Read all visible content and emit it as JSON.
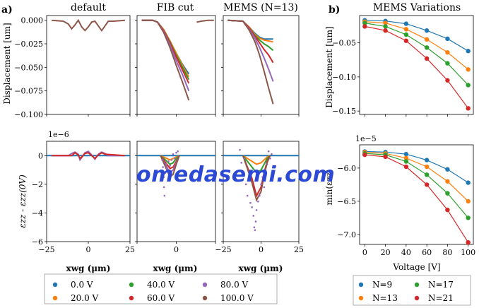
{
  "colors": {
    "v0": "#1f77b4",
    "v20": "#ff7f0e",
    "v40": "#2ca02c",
    "v60": "#d62728",
    "v80": "#9467bd",
    "v100": "#8c564b",
    "n9": "#1f77b4",
    "n13": "#ff7f0e",
    "n17": "#2ca02c",
    "n21": "#d62728"
  },
  "panel_labels": {
    "a": "a)",
    "b": "b)"
  },
  "watermark": "omedasemi.com",
  "legend_a": [
    {
      "label": "0.0 V",
      "color": "#1f77b4"
    },
    {
      "label": "40.0 V",
      "color": "#2ca02c"
    },
    {
      "label": "80.0 V",
      "color": "#9467bd"
    },
    {
      "label": "20.0 V",
      "color": "#ff7f0e"
    },
    {
      "label": "60.0 V",
      "color": "#d62728"
    },
    {
      "label": "100.0 V",
      "color": "#8c564b"
    }
  ],
  "legend_b": [
    {
      "label": "N=9",
      "color": "#1f77b4"
    },
    {
      "label": "N=17",
      "color": "#2ca02c"
    },
    {
      "label": "N=13",
      "color": "#ff7f0e"
    },
    {
      "label": "N=21",
      "color": "#d62728"
    }
  ],
  "chart_data": [
    {
      "type": "line",
      "title": "default",
      "ylabel": "Displacement [um]",
      "xlim": [
        -25,
        25
      ],
      "ylim": [
        -0.1,
        0.005
      ],
      "yticks": [
        "0.000",
        "−0.025",
        "−0.050",
        "−0.075",
        "−0.100"
      ],
      "ytick_values": [
        0,
        -0.025,
        -0.05,
        -0.075,
        -0.1
      ],
      "series": [
        {
          "color": "#8c564b",
          "x": [
            -22,
            -15,
            -12,
            -10,
            -8,
            -6,
            -4,
            -2,
            0,
            2,
            4,
            6,
            8,
            10,
            12,
            15,
            22
          ],
          "y": [
            0,
            -0.001,
            -0.004,
            -0.009,
            -0.005,
            0,
            -0.007,
            -0.011,
            -0.007,
            -0.002,
            -0.001,
            -0.006,
            -0.011,
            -0.006,
            -0.001,
            -0.001,
            0
          ]
        }
      ]
    },
    {
      "type": "line",
      "title": "FIB cut",
      "xlim": [
        -25,
        25
      ],
      "ylim": [
        -0.1,
        0.005
      ],
      "series": [
        {
          "color": "#1f77b4",
          "x": [
            -22,
            -15,
            -12,
            -8,
            -4,
            0,
            4,
            8
          ],
          "y": [
            0,
            0,
            -0.002,
            -0.01,
            -0.022,
            -0.035,
            -0.047,
            -0.057
          ]
        },
        {
          "color": "#ff7f0e",
          "x": [
            -22,
            -15,
            -12,
            -8,
            -4,
            0,
            4,
            8
          ],
          "y": [
            0,
            0,
            -0.002,
            -0.01,
            -0.022,
            -0.035,
            -0.048,
            -0.06
          ]
        },
        {
          "color": "#2ca02c",
          "x": [
            -22,
            -15,
            -12,
            -8,
            -4,
            0,
            4,
            8
          ],
          "y": [
            0,
            0,
            -0.002,
            -0.011,
            -0.023,
            -0.037,
            -0.05,
            -0.063
          ]
        },
        {
          "color": "#d62728",
          "x": [
            -22,
            -15,
            -12,
            -8,
            -4,
            0,
            4,
            8
          ],
          "y": [
            0,
            0,
            -0.002,
            -0.011,
            -0.024,
            -0.039,
            -0.053,
            -0.067
          ]
        },
        {
          "color": "#9467bd",
          "x": [
            -22,
            -15,
            -12,
            -8,
            -4,
            0,
            4,
            8
          ],
          "y": [
            0,
            0,
            -0.002,
            -0.012,
            -0.026,
            -0.043,
            -0.058,
            -0.075
          ]
        },
        {
          "color": "#8c564b",
          "x": [
            -22,
            -15,
            -12,
            -8,
            -4,
            0,
            4,
            8
          ],
          "y": [
            0,
            0,
            -0.002,
            -0.013,
            -0.029,
            -0.048,
            -0.066,
            -0.085
          ]
        },
        {
          "color": "#8c564b",
          "x": [
            13,
            16,
            20,
            24
          ],
          "y": [
            -0.002,
            -0.001,
            0,
            0
          ]
        }
      ]
    },
    {
      "type": "line",
      "title": "MEMS (N=13)",
      "xlim": [
        -25,
        25
      ],
      "ylim": [
        -0.1,
        0.005
      ],
      "series": [
        {
          "color": "#1f77b4",
          "x": [
            -22,
            -12,
            -8,
            -4,
            -1,
            2,
            5,
            8
          ],
          "y": [
            0,
            -0.001,
            -0.007,
            -0.014,
            -0.018,
            -0.02,
            -0.02,
            -0.02
          ]
        },
        {
          "color": "#ff7f0e",
          "x": [
            -22,
            -12,
            -8,
            -4,
            -1,
            2,
            5,
            8
          ],
          "y": [
            0,
            -0.001,
            -0.007,
            -0.015,
            -0.019,
            -0.021,
            -0.022,
            -0.023
          ]
        },
        {
          "color": "#2ca02c",
          "x": [
            -22,
            -12,
            -8,
            -4,
            -1,
            2,
            5,
            8
          ],
          "y": [
            0,
            -0.001,
            -0.008,
            -0.016,
            -0.021,
            -0.025,
            -0.028,
            -0.032
          ]
        },
        {
          "color": "#d62728",
          "x": [
            -22,
            -12,
            -8,
            -4,
            -1,
            2,
            5,
            8
          ],
          "y": [
            0,
            -0.001,
            -0.008,
            -0.017,
            -0.024,
            -0.031,
            -0.037,
            -0.045
          ]
        },
        {
          "color": "#9467bd",
          "x": [
            -22,
            -12,
            -8,
            -4,
            -1,
            2,
            5,
            8
          ],
          "y": [
            0,
            -0.001,
            -0.009,
            -0.019,
            -0.029,
            -0.04,
            -0.052,
            -0.065
          ]
        },
        {
          "color": "#8c564b",
          "x": [
            -22,
            -12,
            -8,
            -4,
            -1,
            2,
            5,
            8
          ],
          "y": [
            0,
            -0.001,
            -0.01,
            -0.023,
            -0.037,
            -0.054,
            -0.072,
            -0.089
          ]
        }
      ]
    },
    {
      "type": "line",
      "ylabel": "εzz - εzz(0V)",
      "offset_text": "1e−6",
      "xlabel": "xwg (μm)",
      "xlim": [
        -25,
        25
      ],
      "ylim": [
        -6,
        1
      ],
      "xticks": [
        "−25",
        "0",
        "25"
      ],
      "yticks": [
        "0",
        "−2",
        "−4",
        "−6"
      ],
      "ytick_values": [
        0,
        -2,
        -4,
        -6
      ],
      "series": [
        {
          "color": "#1f77b4",
          "x": [
            -25,
            25
          ],
          "y": [
            0,
            0
          ]
        },
        {
          "color": "#9467bd",
          "x": [
            -22,
            -12,
            -10,
            -8,
            -6,
            -5,
            -4,
            -2,
            0,
            2,
            4,
            6,
            8,
            10,
            12,
            22
          ],
          "y": [
            0,
            0,
            0.15,
            0.25,
            0.1,
            -0.3,
            -0.15,
            0.2,
            0.3,
            0.05,
            -0.25,
            0.1,
            0.25,
            0.15,
            0,
            0
          ]
        },
        {
          "color": "#d62728",
          "x": [
            -22,
            -10,
            -8,
            -6,
            -5,
            -4,
            -2,
            0,
            2,
            4,
            6,
            8,
            10,
            22
          ],
          "y": [
            0,
            0,
            0.2,
            0.05,
            -0.2,
            -0.1,
            0.15,
            0.2,
            0,
            -0.2,
            0.05,
            0.2,
            0.1,
            0
          ]
        }
      ]
    },
    {
      "type": "line",
      "xlabel": "xwg (μm)",
      "xlim": [
        -25,
        25
      ],
      "ylim": [
        -6,
        1
      ],
      "xticks": [
        "25",
        "0"
      ],
      "series": [
        {
          "color": "#1f77b4",
          "x": [
            -25,
            25
          ],
          "y": [
            0,
            0
          ]
        },
        {
          "color": "#ff7f0e",
          "x": [
            -10,
            -8,
            -6,
            -4,
            -2,
            0,
            2
          ],
          "y": [
            0,
            -0.1,
            -0.2,
            -0.3,
            -0.2,
            -0.1,
            0
          ]
        },
        {
          "color": "#2ca02c",
          "x": [
            -10,
            -8,
            -6,
            -4,
            -2,
            0,
            2
          ],
          "y": [
            0,
            -0.2,
            -0.4,
            -0.6,
            -0.5,
            -0.2,
            0
          ]
        },
        {
          "color": "#d62728",
          "x": [
            -10,
            -8,
            -6,
            -4,
            -2,
            0,
            2
          ],
          "y": [
            0,
            -0.3,
            -0.6,
            -0.9,
            -0.8,
            -0.4,
            0
          ]
        },
        {
          "color": "#9467bd",
          "x": [
            -10,
            -8,
            -6,
            -4,
            -2,
            0,
            2
          ],
          "y": [
            0,
            -0.4,
            -0.8,
            -1.2,
            -1.0,
            -0.5,
            0
          ]
        },
        {
          "color": "#8c564b",
          "x": [
            -10,
            -8,
            -6,
            -4,
            -2,
            0,
            2
          ],
          "y": [
            0,
            -0.5,
            -1.0,
            -1.5,
            -1.3,
            -0.6,
            0
          ]
        }
      ],
      "scatter": [
        {
          "color": "#9467bd",
          "x": [
            -9,
            -8.5,
            -8,
            -7.8,
            -7.5,
            -7,
            -6.5,
            -6,
            -5,
            -4,
            -3,
            -2,
            -1,
            0,
            1
          ],
          "y": [
            -0.3,
            -0.8,
            -1.5,
            -2.2,
            -2.8,
            -1.2,
            -0.6,
            -0.9,
            -0.4,
            -0.7,
            -0.3,
            0.1,
            -0.2,
            0.2,
            0.3
          ]
        }
      ]
    },
    {
      "type": "line",
      "xlabel": "xwg (μm)",
      "xlim": [
        -25,
        25
      ],
      "ylim": [
        -6,
        1
      ],
      "xticks": [
        "−25",
        "0",
        "25"
      ],
      "series": [
        {
          "color": "#1f77b4",
          "x": [
            -25,
            25
          ],
          "y": [
            0,
            0
          ]
        },
        {
          "color": "#ff7f0e",
          "x": [
            -12,
            -9,
            -6,
            -3,
            0,
            2,
            4,
            6
          ],
          "y": [
            0,
            -0.2,
            -0.4,
            -0.6,
            -0.5,
            -0.3,
            -0.1,
            0
          ]
        },
        {
          "color": "#2ca02c",
          "x": [
            -12,
            -9,
            -6,
            -3,
            0,
            2,
            4,
            6
          ],
          "y": [
            0,
            -0.4,
            -0.8,
            -1.2,
            -1.0,
            -0.6,
            -0.2,
            0
          ]
        },
        {
          "color": "#d62728",
          "x": [
            -12,
            -9,
            -6,
            -3,
            0,
            2,
            4,
            6
          ],
          "y": [
            0,
            -0.8,
            -1.6,
            -2.8,
            -2.2,
            -1.2,
            -0.4,
            0
          ]
        },
        {
          "color": "#8c564b",
          "x": [
            -12,
            -9,
            -6,
            -3,
            0,
            2,
            4,
            6
          ],
          "y": [
            0,
            -0.9,
            -1.9,
            -3.1,
            -2.5,
            -1.4,
            -0.5,
            0
          ]
        }
      ],
      "scatter": [
        {
          "color": "#9467bd",
          "x": [
            -14,
            -13,
            -12,
            -11,
            -10,
            -9,
            -8,
            -7,
            -6,
            -5,
            -4.5,
            -4,
            -3.5,
            -3,
            -2,
            -1,
            0,
            1,
            2,
            3,
            4,
            5,
            6,
            7
          ],
          "y": [
            0.4,
            -0.5,
            -1.2,
            -0.2,
            -2.0,
            -2.8,
            -1.5,
            -3.3,
            -3.6,
            -4.2,
            -5.0,
            -5.2,
            -4.6,
            -3.8,
            -3.2,
            -2.8,
            -2.0,
            -1.5,
            -2.2,
            -1.0,
            -0.6,
            0.3,
            -0.2,
            0.1
          ]
        }
      ]
    },
    {
      "type": "line",
      "title": "MEMS Variations",
      "ylabel": "Displacement [um]",
      "xlim": [
        -5,
        105
      ],
      "ylim": [
        -0.155,
        -0.01
      ],
      "yticks": [
        "−0.05",
        "−0.10",
        "−0.15"
      ],
      "ytick_values": [
        -0.05,
        -0.1,
        -0.15
      ],
      "x": [
        0,
        20,
        40,
        60,
        80,
        100
      ],
      "series": [
        {
          "name": "N=9",
          "color": "#1f77b4",
          "values": [
            -0.017,
            -0.018,
            -0.022,
            -0.032,
            -0.044,
            -0.062
          ]
        },
        {
          "name": "N=13",
          "color": "#ff7f0e",
          "values": [
            -0.019,
            -0.021,
            -0.03,
            -0.045,
            -0.064,
            -0.089
          ]
        },
        {
          "name": "N=17",
          "color": "#2ca02c",
          "values": [
            -0.021,
            -0.026,
            -0.038,
            -0.057,
            -0.08,
            -0.112
          ]
        },
        {
          "name": "N=21",
          "color": "#d62728",
          "values": [
            -0.026,
            -0.032,
            -0.047,
            -0.073,
            -0.105,
            -0.146
          ]
        }
      ]
    },
    {
      "type": "line",
      "ylabel": "min(εzz)",
      "offset_text": "1e−5",
      "xlabel": "Voltage [V]",
      "xlim": [
        -5,
        105
      ],
      "ylim": [
        -7.15,
        -5.65
      ],
      "xticks": [
        "0",
        "20",
        "40",
        "60",
        "80",
        "100"
      ],
      "xtick_values": [
        0,
        20,
        40,
        60,
        80,
        100
      ],
      "yticks": [
        "−6.0",
        "−6.5",
        "−7.0"
      ],
      "ytick_values": [
        -6.0,
        -6.5,
        -7.0
      ],
      "x": [
        0,
        20,
        40,
        60,
        80,
        100
      ],
      "series": [
        {
          "name": "N=9",
          "color": "#1f77b4",
          "values": [
            -5.75,
            -5.76,
            -5.79,
            -5.88,
            -6.02,
            -6.22
          ]
        },
        {
          "name": "N=13",
          "color": "#ff7f0e",
          "values": [
            -5.76,
            -5.78,
            -5.85,
            -5.98,
            -6.2,
            -6.5
          ]
        },
        {
          "name": "N=17",
          "color": "#2ca02c",
          "values": [
            -5.78,
            -5.8,
            -5.9,
            -6.1,
            -6.38,
            -6.75
          ]
        },
        {
          "name": "N=21",
          "color": "#d62728",
          "values": [
            -5.8,
            -5.83,
            -5.98,
            -6.25,
            -6.63,
            -7.12
          ]
        }
      ]
    }
  ]
}
